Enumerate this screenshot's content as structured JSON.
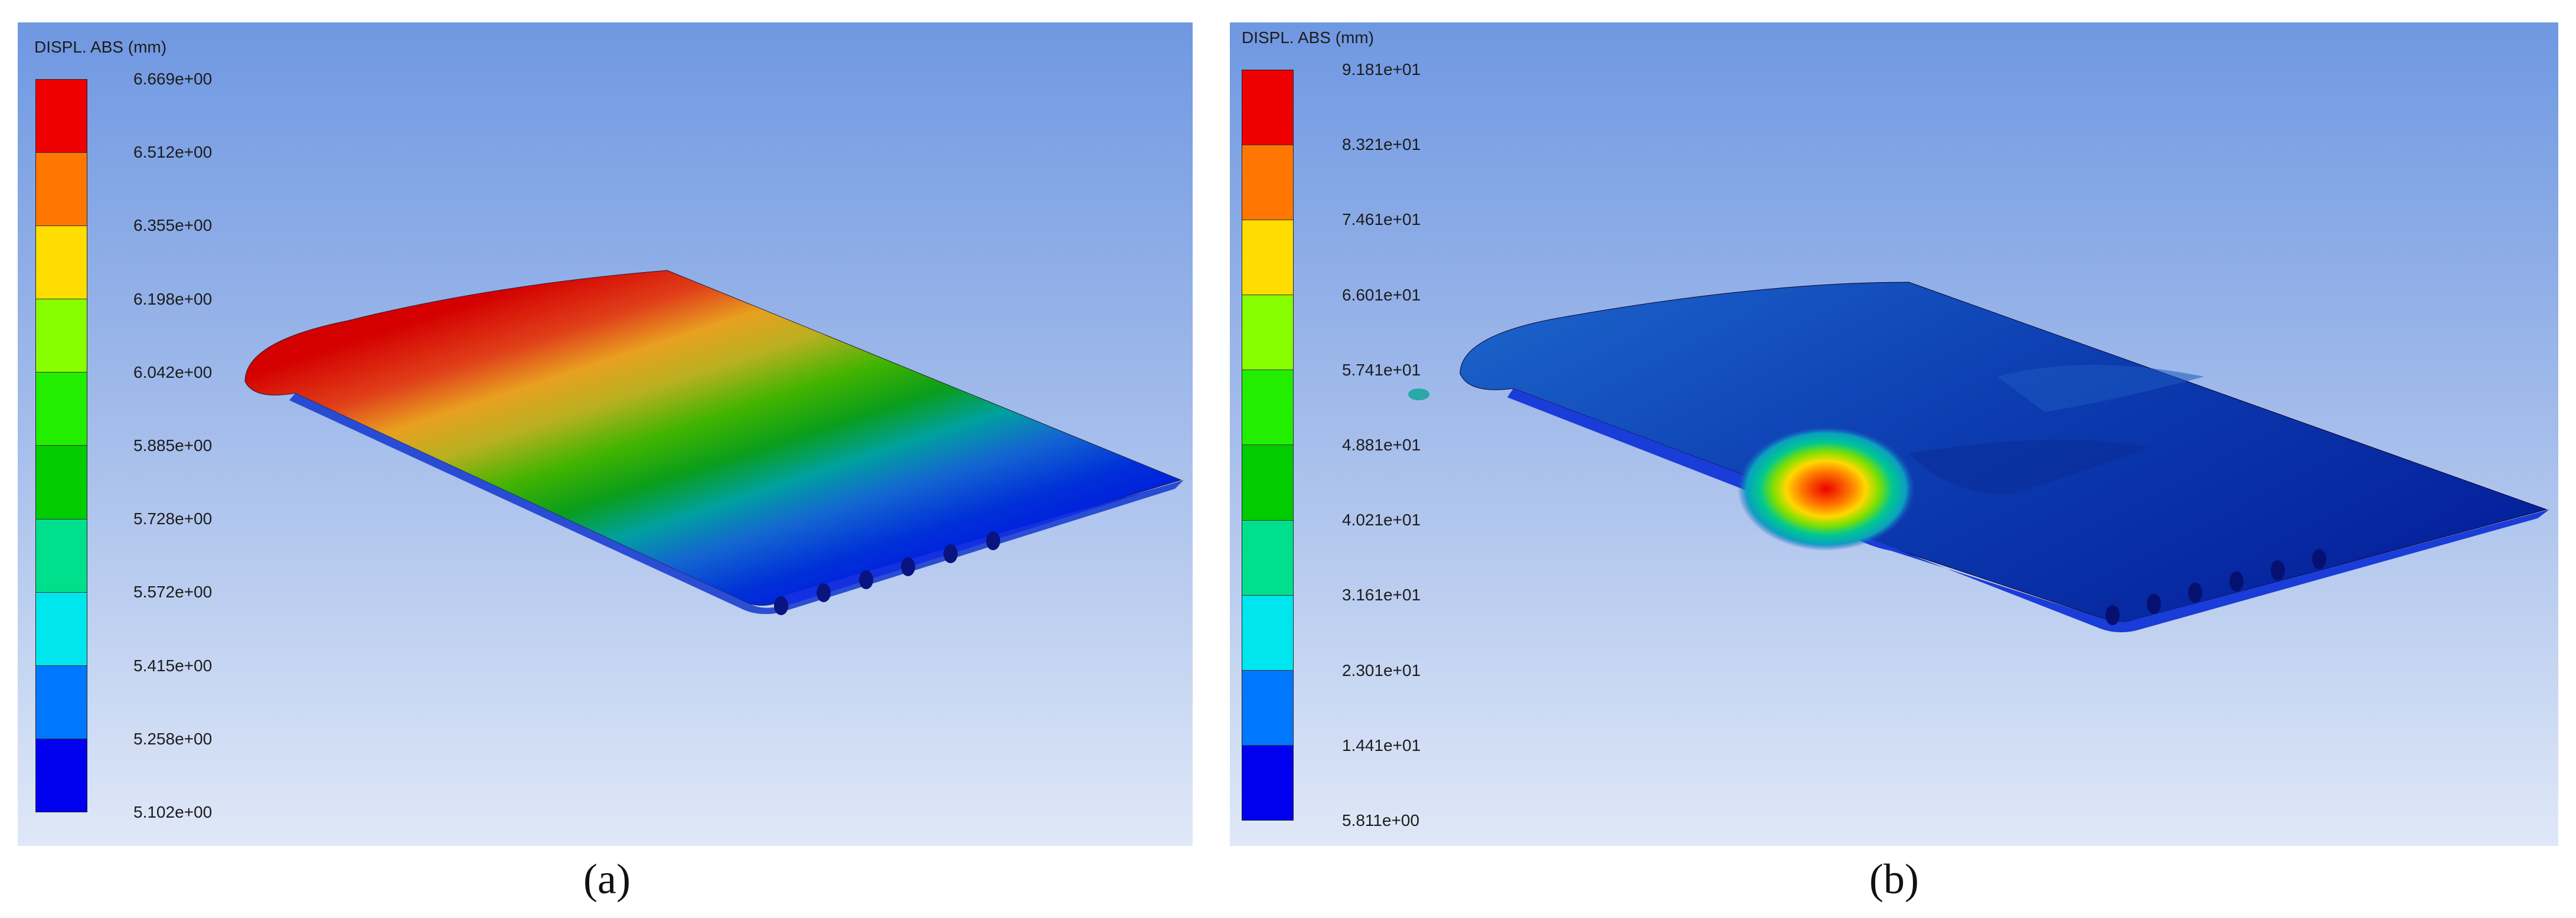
{
  "panels": [
    {
      "id": "a",
      "legend_title": "DISPL. ABS (mm)",
      "ticks": [
        "6.669e+00",
        "6.512e+00",
        "6.355e+00",
        "6.198e+00",
        "6.042e+00",
        "5.885e+00",
        "5.728e+00",
        "5.572e+00",
        "5.415e+00",
        "5.258e+00",
        "5.102e+00"
      ],
      "band_colors": [
        "#ee0000",
        "#ff7700",
        "#ffdd00",
        "#88ff00",
        "#22ee00",
        "#00cc00",
        "#00e08c",
        "#00e6ee",
        "#0077ff",
        "#0000ee"
      ],
      "caption": "(a)"
    },
    {
      "id": "b",
      "legend_title": "DISPL. ABS (mm)",
      "ticks": [
        "9.181e+01",
        "8.321e+01",
        "7.461e+01",
        "6.601e+01",
        "5.741e+01",
        "4.881e+01",
        "4.021e+01",
        "3.161e+01",
        "2.301e+01",
        "1.441e+01",
        "5.811e+00"
      ],
      "band_colors": [
        "#ee0000",
        "#ff7700",
        "#ffdd00",
        "#88ff00",
        "#22ee00",
        "#00cc00",
        "#00e08c",
        "#00e6ee",
        "#0077ff",
        "#0000ee"
      ],
      "caption": "(b)"
    }
  ]
}
